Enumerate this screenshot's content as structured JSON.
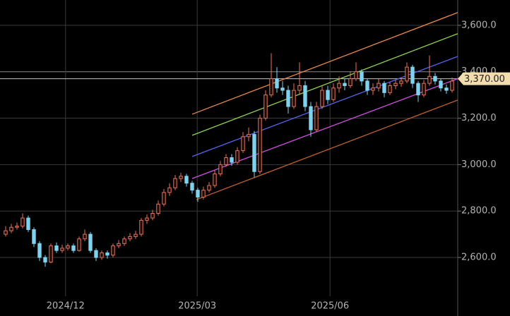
{
  "chart_data": {
    "type": "candlestick",
    "xlim": [
      -1,
      80
    ],
    "xticks": [
      {
        "value": 10.6,
        "label": "2024/12"
      },
      {
        "value": 33.9,
        "label": "2025/03"
      },
      {
        "value": 57.4,
        "label": "2025/06"
      }
    ],
    "ylim": [
      2433,
      3709
    ],
    "yticks": [
      {
        "value": 2600,
        "label": "2,600.0"
      },
      {
        "value": 2800,
        "label": "2,800.0"
      },
      {
        "value": 3000,
        "label": "3,000.0"
      },
      {
        "value": 3200,
        "label": "3,200.0"
      },
      {
        "value": 3400,
        "label": "3,400.0"
      },
      {
        "value": 3600,
        "label": "3,600.0"
      }
    ],
    "grid": true,
    "up_color": "#e8735a",
    "down_color": "#7fd3ee",
    "open": [
      2700,
      2715,
      2730,
      2735,
      2770,
      2720,
      2660,
      2600,
      2580,
      2650,
      2630,
      2640,
      2650,
      2630,
      2680,
      2700,
      2630,
      2600,
      2620,
      2610,
      2650,
      2660,
      2680,
      2690,
      2700,
      2760,
      2770,
      2790,
      2830,
      2880,
      2900,
      2940,
      2950,
      2920,
      2890,
      2860,
      2890,
      2910,
      2960,
      3000,
      3030,
      3010,
      3060,
      3120,
      3130,
      2970,
      3200,
      3300,
      3370,
      3330,
      3320,
      3250,
      3320,
      3340,
      3250,
      3150,
      3250,
      3320,
      3280,
      3330,
      3350,
      3340,
      3370,
      3400,
      3360,
      3320,
      3330,
      3350,
      3310,
      3340,
      3350,
      3360,
      3420,
      3350,
      3300,
      3350,
      3380,
      3360,
      3330,
      3320
    ],
    "high": [
      2735,
      2745,
      2750,
      2790,
      2780,
      2730,
      2670,
      2610,
      2660,
      2665,
      2655,
      2660,
      2660,
      2690,
      2720,
      2710,
      2640,
      2630,
      2630,
      2660,
      2675,
      2690,
      2705,
      2715,
      2770,
      2785,
      2805,
      2845,
      2895,
      2920,
      2955,
      2965,
      2960,
      2930,
      2900,
      2905,
      2925,
      2975,
      3015,
      3045,
      3045,
      3075,
      3140,
      3160,
      3145,
      3215,
      3320,
      3480,
      3420,
      3360,
      3340,
      3350,
      3440,
      3360,
      3270,
      3270,
      3340,
      3340,
      3350,
      3380,
      3370,
      3400,
      3440,
      3410,
      3370,
      3350,
      3370,
      3360,
      3355,
      3365,
      3375,
      3440,
      3430,
      3360,
      3365,
      3470,
      3395,
      3370,
      3345,
      3375
    ],
    "low": [
      2690,
      2705,
      2720,
      2725,
      2710,
      2645,
      2585,
      2560,
      2575,
      2620,
      2620,
      2630,
      2620,
      2625,
      2670,
      2620,
      2585,
      2590,
      2595,
      2600,
      2640,
      2650,
      2670,
      2680,
      2690,
      2745,
      2760,
      2780,
      2820,
      2865,
      2890,
      2925,
      2905,
      2875,
      2840,
      2850,
      2880,
      2900,
      2950,
      2990,
      2995,
      3000,
      3050,
      3100,
      2945,
      2960,
      3190,
      3290,
      3310,
      3300,
      3220,
      3240,
      3300,
      3230,
      3120,
      3140,
      3240,
      3260,
      3270,
      3310,
      3320,
      3330,
      3360,
      3340,
      3300,
      3300,
      3315,
      3290,
      3300,
      3325,
      3335,
      3350,
      3330,
      3270,
      3290,
      3340,
      3345,
      3315,
      3305,
      3310
    ],
    "close": [
      2715,
      2730,
      2735,
      2770,
      2720,
      2660,
      2600,
      2580,
      2650,
      2630,
      2640,
      2650,
      2630,
      2680,
      2700,
      2630,
      2600,
      2620,
      2610,
      2650,
      2660,
      2680,
      2690,
      2700,
      2760,
      2770,
      2790,
      2830,
      2880,
      2900,
      2940,
      2950,
      2920,
      2890,
      2860,
      2890,
      2910,
      2960,
      3000,
      3030,
      3010,
      3060,
      3120,
      3130,
      2970,
      3200,
      3300,
      3370,
      3330,
      3320,
      3250,
      3320,
      3340,
      3250,
      3150,
      3250,
      3320,
      3280,
      3330,
      3350,
      3340,
      3370,
      3400,
      3360,
      3320,
      3330,
      3350,
      3310,
      3340,
      3350,
      3360,
      3420,
      3350,
      3300,
      3350,
      3380,
      3360,
      3330,
      3320,
      3360
    ],
    "channels": [
      {
        "color": "#e8894a",
        "x": [
          33,
          80
        ],
        "values": [
          3217,
          3655
        ]
      },
      {
        "color": "#8fd34f",
        "x": [
          33,
          80
        ],
        "values": [
          3126,
          3564
        ]
      },
      {
        "color": "#5a62f0",
        "x": [
          33,
          80
        ],
        "values": [
          3035,
          3466
        ]
      },
      {
        "color": "#d050e0",
        "x": [
          33,
          80
        ],
        "values": [
          2940,
          3370
        ]
      },
      {
        "color": "#c0622e",
        "x": [
          33.75,
          80
        ],
        "values": [
          2849,
          3278
        ]
      }
    ],
    "last_price": {
      "value": 3370,
      "label": "3,370.00",
      "color": "#f3dcae"
    }
  }
}
